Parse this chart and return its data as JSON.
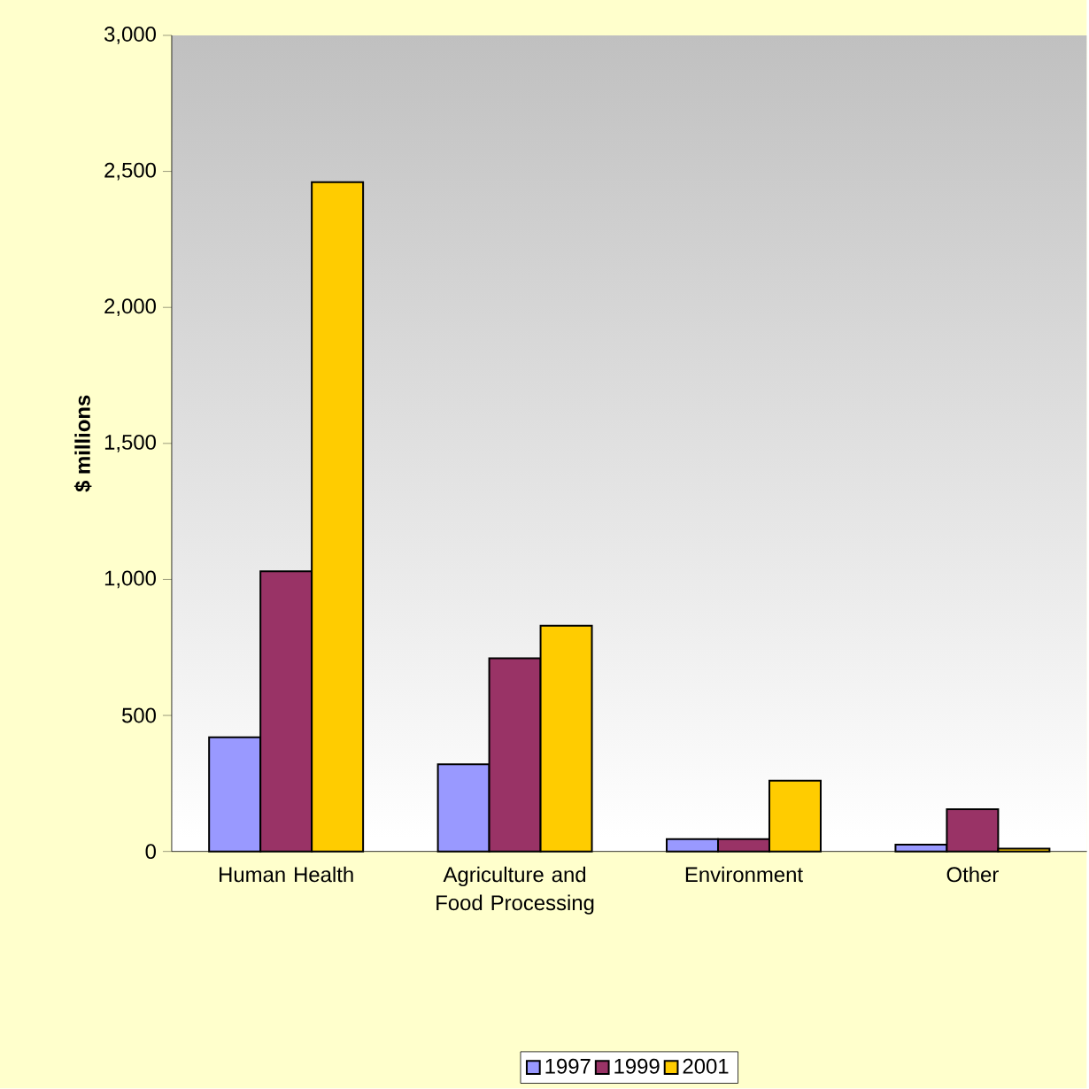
{
  "chart_data": {
    "type": "bar",
    "ylabel": "$ millions",
    "categories": [
      "Human Health",
      "Agriculture and Food Processing",
      "Environment",
      "Other"
    ],
    "series": [
      {
        "name": "1997",
        "color": "#9999ff",
        "values": [
          420,
          320,
          45,
          25
        ]
      },
      {
        "name": "1999",
        "color": "#993366",
        "values": [
          1030,
          710,
          45,
          155
        ]
      },
      {
        "name": "2001",
        "color": "#ffcc00",
        "values": [
          2460,
          830,
          260,
          10
        ]
      }
    ],
    "ylim": [
      0,
      3000
    ],
    "yticks": [
      {
        "value": 0,
        "label": "0"
      },
      {
        "value": 500,
        "label": "500"
      },
      {
        "value": 1000,
        "label": "1,000"
      },
      {
        "value": 1500,
        "label": "1,500"
      },
      {
        "value": 2000,
        "label": "2,000"
      },
      {
        "value": 2500,
        "label": "2,500"
      },
      {
        "value": 3000,
        "label": "3,000"
      }
    ],
    "legend": "bottom",
    "grid": false
  }
}
